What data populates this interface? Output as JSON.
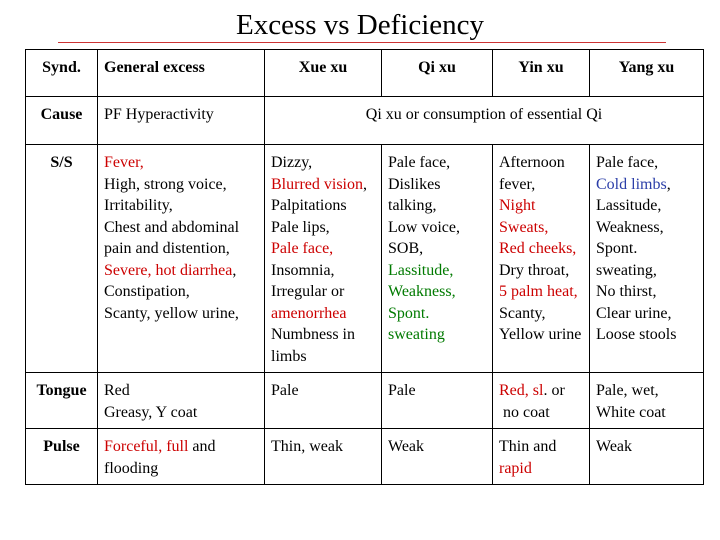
{
  "title": "Excess vs Deficiency",
  "colors": {
    "red": "#cc0000",
    "green": "#007a00",
    "blue": "#2b3ea8"
  },
  "header": {
    "synd": "Synd.",
    "general": "General excess",
    "xue": "Xue xu",
    "qi": "Qi xu",
    "yin": "Yin xu",
    "yang": "Yang xu"
  },
  "cause": {
    "label": "Cause",
    "general": "PF Hyperactivity",
    "deficiency": "Qi xu or consumption of essential Qi"
  },
  "ss": {
    "label": "S/S",
    "general": {
      "fever": "Fever,",
      "l1": "High, strong voice,",
      "l2": "Irritability,",
      "l3": "Chest and abdominal pain and distention,",
      "severe": "Severe, hot diarrhea",
      "severe_comma": ",",
      "l4": "Constipation,",
      "l5": "Scanty, yellow urine,"
    },
    "xue": {
      "dizzy": "Dizzy,",
      "blurred": "Blurred vision",
      "blurred_comma": ",",
      "palp": "Palpitations",
      "lips": "Pale lips,",
      "paleface": "Pale face,",
      "insomnia": "Insomnia,",
      "irregular": "Irregular or",
      "amen": "amenorrhea",
      "numb": "Numbness in limbs"
    },
    "qi": {
      "pale": "Pale face,",
      "dislikes": "Dislikes talking,",
      "low": "Low voice,",
      "sob": "SOB,",
      "lass": "Lassitude,",
      "weak": "Weakness,",
      "spont": "Spont. sweating"
    },
    "yin": {
      "afternoon": "Afternoon fever,",
      "night": "Night Sweats,",
      "red": "Red cheeks,",
      "dry": "Dry throat,",
      "palm": "5 palm heat,",
      "scanty": "Scanty, Yellow urine"
    },
    "yang": {
      "pale": "Pale face,",
      "cold": "Cold limbs",
      "cold_comma": ",",
      "lass": "Lassitude,",
      "weak": "Weakness,",
      "spont": "Spont. sweating,",
      "thirst": "No thirst,",
      "clear": "Clear urine,",
      "loose": "Loose stools"
    }
  },
  "tongue": {
    "label": "Tongue",
    "general_l1": "Red",
    "general_l2": "Greasy, Y coat",
    "xue": "Pale",
    "qi": "Pale",
    "yin_red": "Red, sl",
    "yin_rest": ". or",
    "yin_l2": " no coat",
    "yang_l1": "Pale, wet,",
    "yang_l2": "White coat"
  },
  "pulse": {
    "label": "Pulse",
    "general_red": "Forceful, full",
    "general_rest": " and flooding",
    "xue": "Thin, weak",
    "qi": "Weak",
    "yin_l1": "Thin and",
    "yin_red": "rapid",
    "yang": "Weak"
  }
}
